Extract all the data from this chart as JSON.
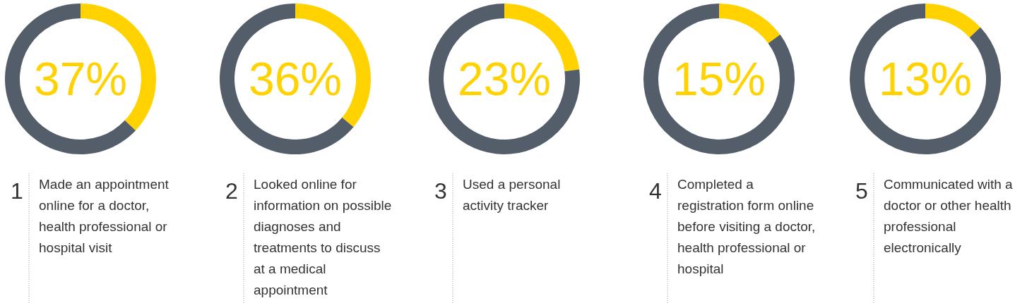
{
  "chart_data": [
    {
      "type": "donut",
      "title": "Made an appointment online for a doctor, health professional or hospital visit",
      "categories": [
        null,
        null
      ],
      "values": [
        37,
        63
      ],
      "colors": [
        "#ffd200",
        "#545e6a"
      ],
      "annotations": [
        "37%",
        "1"
      ]
    },
    {
      "type": "donut",
      "title": "Looked online for information on possible diagnoses and treatments to discuss at a medical appointment",
      "categories": [
        null,
        null
      ],
      "values": [
        36,
        64
      ],
      "colors": [
        "#ffd200",
        "#545e6a"
      ],
      "annotations": [
        "36%",
        "2"
      ]
    },
    {
      "type": "donut",
      "title": "Used a personal activity tracker",
      "categories": [
        null,
        null
      ],
      "values": [
        23,
        77
      ],
      "colors": [
        "#ffd200",
        "#545e6a"
      ],
      "annotations": [
        "23%",
        "3"
      ]
    },
    {
      "type": "donut",
      "title": "Completed a registration form online before visiting a doctor, health professional or hospital",
      "categories": [
        null,
        null
      ],
      "values": [
        15,
        85
      ],
      "colors": [
        "#ffd200",
        "#545e6a"
      ],
      "annotations": [
        "15%",
        "4"
      ]
    },
    {
      "type": "donut",
      "title": "Communicated with a doctor or other health professional electronically",
      "categories": [
        null,
        null
      ],
      "values": [
        13,
        87
      ],
      "colors": [
        "#ffd200",
        "#545e6a"
      ],
      "annotations": [
        "13%",
        "5"
      ]
    }
  ]
}
